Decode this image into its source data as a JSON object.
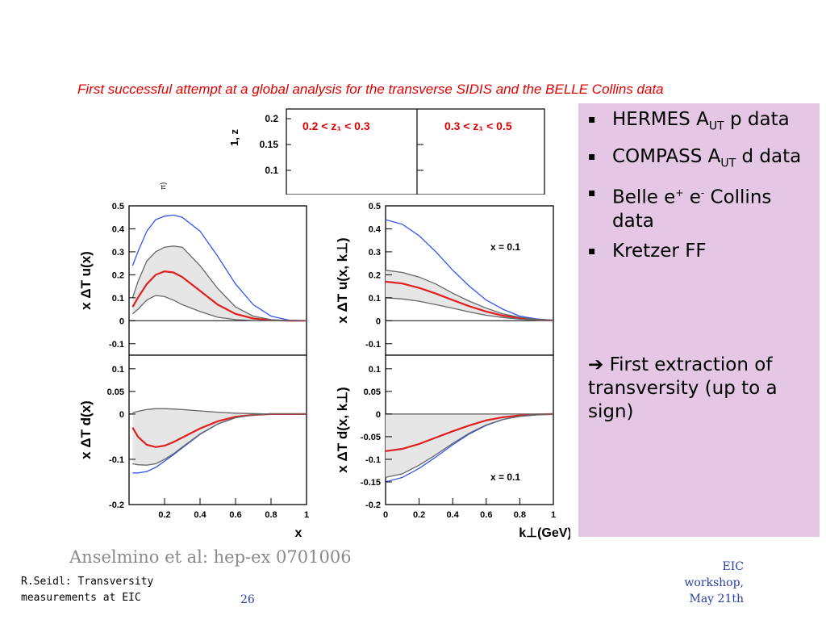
{
  "slide": {
    "title": "First successful attempt at a global analysis for the transverse SIDIS and the BELLE Collins data",
    "reference": "Anselmino et al: hep-ex 0701006",
    "footer_left_line1": "R.Seidl: Transversity",
    "footer_left_line2": "measurements at EIC",
    "page_number": "26",
    "footer_right_line1": "EIC",
    "footer_right_line2": "workshop,",
    "footer_right_line3": "May 21th"
  },
  "sidebar": {
    "bullet_marker": "▪",
    "items": [
      {
        "pre": "HERMES A",
        "sub": "UT",
        "post": " p data"
      },
      {
        "pre": "COMPASS A",
        "sub": "UT",
        "post": " d data"
      },
      {
        "pre": "Belle e",
        "sup1": "+",
        "mid": " e",
        "sup2": "-",
        "post": " Collins data"
      },
      {
        "pre": "Kretzer FF"
      }
    ],
    "conclusion_arrow": "➔",
    "conclusion": " First extraction of transversity (up to a sign)"
  },
  "background_figure": {
    "panel_labels": [
      "0.2 < z₁ < 0.3",
      "0.3 < z₁ < 0.5"
    ],
    "yticks": [
      "0.2",
      "0.15",
      "0.1"
    ],
    "label_color": "#e00000"
  },
  "chart_data": [
    {
      "type": "line",
      "ylabel": "x ΔT u(x)",
      "xlabel": "",
      "xlim": [
        0,
        1
      ],
      "ylim": [
        -0.15,
        0.5
      ],
      "yticks": [
        "0.5",
        "0.4",
        "0.3",
        "0.2",
        "0.1",
        "0",
        "-0.1"
      ],
      "annotation": "",
      "x": [
        0.02,
        0.05,
        0.1,
        0.15,
        0.2,
        0.25,
        0.3,
        0.4,
        0.5,
        0.6,
        0.7,
        0.8,
        0.9,
        1.0
      ],
      "series": [
        {
          "color": "#3355ee",
          "values": [
            0.24,
            0.3,
            0.39,
            0.44,
            0.455,
            0.46,
            0.45,
            0.39,
            0.28,
            0.16,
            0.07,
            0.02,
            0.003,
            0
          ]
        },
        {
          "color": "#e02020",
          "values": [
            0.06,
            0.1,
            0.16,
            0.2,
            0.215,
            0.21,
            0.19,
            0.13,
            0.07,
            0.03,
            0.01,
            0.002,
            0,
            0
          ]
        },
        {
          "color": "#666666",
          "values": [
            0.1,
            0.17,
            0.26,
            0.3,
            0.32,
            0.325,
            0.32,
            0.24,
            0.14,
            0.06,
            0.02,
            0.005,
            0,
            0
          ]
        },
        {
          "color": "#666666",
          "values": [
            0.03,
            0.05,
            0.09,
            0.11,
            0.105,
            0.09,
            0.07,
            0.04,
            0.015,
            0.005,
            0.001,
            0,
            0,
            0
          ]
        }
      ]
    },
    {
      "type": "line",
      "ylabel": "x ΔT u(x, k⊥)",
      "xlabel": "",
      "xlim": [
        0,
        1
      ],
      "ylim": [
        -0.15,
        0.5
      ],
      "yticks": [
        "0.5",
        "0.4",
        "0.3",
        "0.2",
        "0.1",
        "0",
        "-0.1"
      ],
      "annotation": "x = 0.1",
      "x": [
        0.0,
        0.1,
        0.2,
        0.3,
        0.4,
        0.5,
        0.6,
        0.7,
        0.8,
        0.9,
        1.0
      ],
      "series": [
        {
          "color": "#3355ee",
          "values": [
            0.44,
            0.42,
            0.37,
            0.3,
            0.22,
            0.15,
            0.09,
            0.05,
            0.02,
            0.008,
            0.002
          ]
        },
        {
          "color": "#e02020",
          "values": [
            0.17,
            0.162,
            0.143,
            0.118,
            0.09,
            0.063,
            0.04,
            0.022,
            0.011,
            0.004,
            0.001
          ]
        },
        {
          "color": "#666666",
          "values": [
            0.22,
            0.21,
            0.19,
            0.16,
            0.12,
            0.085,
            0.055,
            0.03,
            0.015,
            0.006,
            0.002
          ]
        },
        {
          "color": "#666666",
          "values": [
            0.1,
            0.095,
            0.085,
            0.07,
            0.055,
            0.038,
            0.024,
            0.014,
            0.007,
            0.003,
            0.001
          ]
        }
      ]
    },
    {
      "type": "line",
      "ylabel": "x ΔT d(x)",
      "xlabel": "x",
      "xlim": [
        0,
        1
      ],
      "ylim": [
        -0.2,
        0.13
      ],
      "yticks": [
        "0.1",
        "0.05",
        "0",
        "-0.1",
        "-0.2"
      ],
      "xticks": [
        "0.2",
        "0.4",
        "0.6",
        "0.8",
        "1"
      ],
      "annotation": "",
      "x": [
        0.02,
        0.05,
        0.1,
        0.15,
        0.2,
        0.25,
        0.3,
        0.4,
        0.5,
        0.6,
        0.7,
        0.8,
        0.9,
        1.0
      ],
      "series": [
        {
          "color": "#3355ee",
          "values": [
            -0.13,
            -0.13,
            -0.127,
            -0.118,
            -0.104,
            -0.09,
            -0.075,
            -0.045,
            -0.022,
            -0.008,
            -0.002,
            0,
            0,
            0
          ]
        },
        {
          "color": "#e02020",
          "values": [
            -0.03,
            -0.05,
            -0.068,
            -0.073,
            -0.07,
            -0.062,
            -0.052,
            -0.032,
            -0.016,
            -0.006,
            -0.002,
            0,
            0,
            0
          ]
        },
        {
          "color": "#666666",
          "values": [
            0.003,
            0.006,
            0.01,
            0.012,
            0.012,
            0.011,
            0.01,
            0.007,
            0.004,
            0.002,
            0.001,
            0,
            0,
            0
          ]
        },
        {
          "color": "#666666",
          "values": [
            -0.11,
            -0.112,
            -0.113,
            -0.11,
            -0.1,
            -0.088,
            -0.073,
            -0.044,
            -0.022,
            -0.008,
            -0.002,
            0,
            0,
            0
          ]
        }
      ]
    },
    {
      "type": "line",
      "ylabel": "x ΔT d(x, k⊥)",
      "xlabel": "k⊥(GeV)",
      "xlim": [
        0,
        1
      ],
      "ylim": [
        -0.2,
        0.13
      ],
      "yticks": [
        "0.1",
        "0.05",
        "0",
        "-0.05",
        "-0.1",
        "-0.15",
        "-0.2"
      ],
      "xticks": [
        "0",
        "0.2",
        "0.4",
        "0.6",
        "0.8",
        "1"
      ],
      "annotation": "x = 0.1",
      "x": [
        0.0,
        0.1,
        0.2,
        0.3,
        0.4,
        0.5,
        0.6,
        0.7,
        0.8,
        0.9,
        1.0
      ],
      "series": [
        {
          "color": "#3355ee",
          "values": [
            -0.15,
            -0.14,
            -0.12,
            -0.095,
            -0.068,
            -0.044,
            -0.025,
            -0.012,
            -0.005,
            -0.002,
            0
          ]
        },
        {
          "color": "#e02020",
          "values": [
            -0.082,
            -0.077,
            -0.066,
            -0.052,
            -0.038,
            -0.025,
            -0.014,
            -0.007,
            -0.003,
            -0.001,
            0
          ]
        },
        {
          "color": "#666666",
          "values": [
            0.0,
            0.0,
            0.0,
            0.0,
            0.0,
            0.0,
            0.0,
            0.0,
            0.0,
            0.0,
            0
          ]
        },
        {
          "color": "#666666",
          "values": [
            -0.14,
            -0.132,
            -0.113,
            -0.09,
            -0.065,
            -0.042,
            -0.024,
            -0.012,
            -0.005,
            -0.002,
            0
          ]
        }
      ]
    }
  ]
}
